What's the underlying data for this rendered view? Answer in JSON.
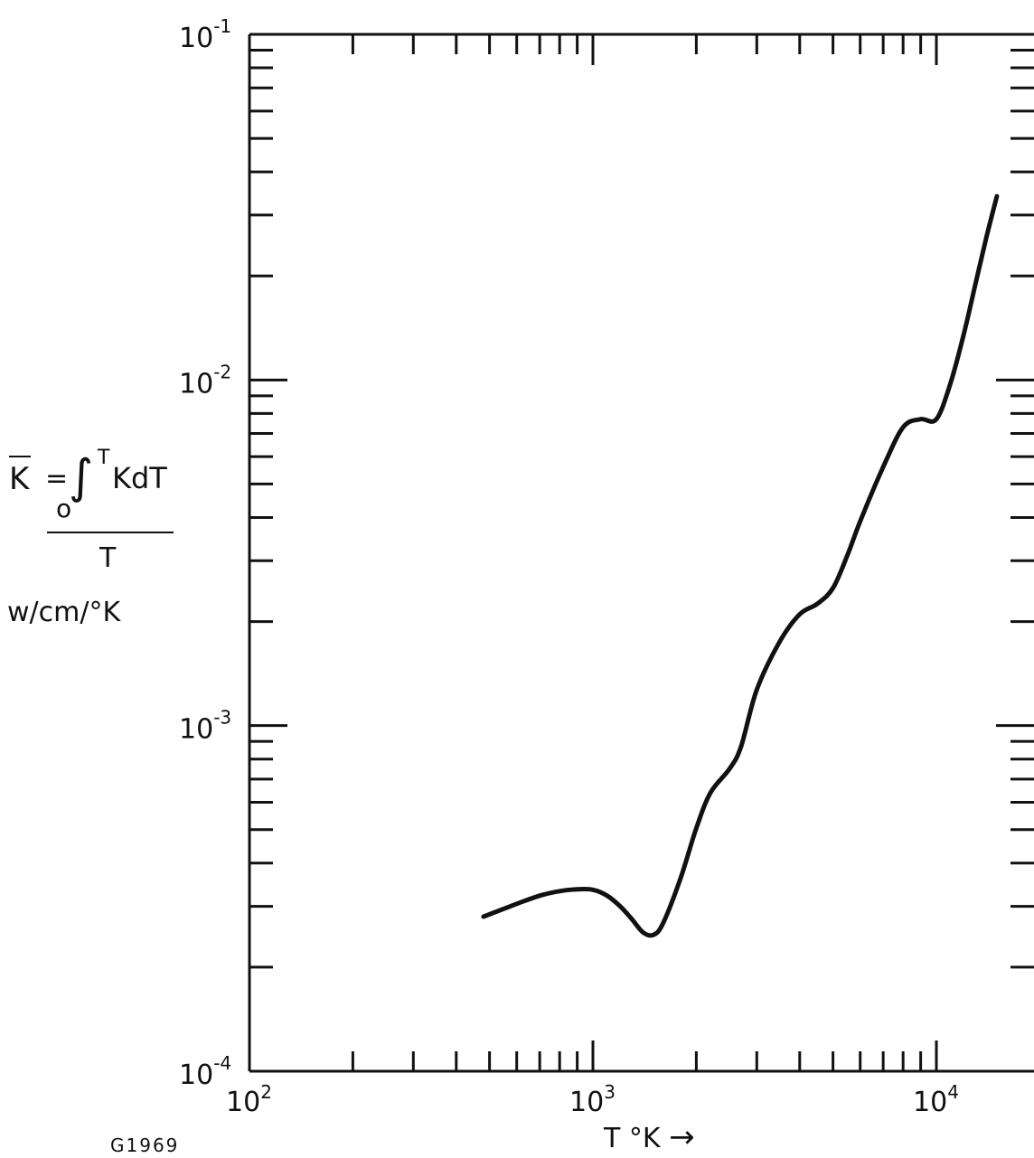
{
  "figure_id": "G1969",
  "ylabel": {
    "lhs": "K",
    "eq_sign": "=",
    "integral": "∫",
    "upper": "T",
    "lower": "o",
    "integrand": "KdT",
    "denominator": "T",
    "units": "w/cm/°K"
  },
  "xlabel": "T °K",
  "xlabel_arrow": "→",
  "chart_data": {
    "type": "line",
    "xscale": "log",
    "yscale": "log",
    "xlim": [
      100,
      15000
    ],
    "ylim": [
      0.0001,
      0.1
    ],
    "x_ticks": [
      {
        "base": "10",
        "exp": "2",
        "value": 100
      },
      {
        "base": "10",
        "exp": "3",
        "value": 1000
      },
      {
        "base": "10",
        "exp": "4",
        "value": 10000
      }
    ],
    "y_ticks": [
      {
        "base": "10",
        "exp": "-4",
        "value": 0.0001
      },
      {
        "base": "10",
        "exp": "-3",
        "value": 0.001
      },
      {
        "base": "10",
        "exp": "-2",
        "value": 0.01
      },
      {
        "base": "10",
        "exp": "-1",
        "value": 0.1
      }
    ],
    "grid": false,
    "series": [
      {
        "color": "#111111",
        "x": [
          480,
          600,
          700,
          800,
          900,
          1000,
          1100,
          1200,
          1300,
          1400,
          1500,
          1600,
          1800,
          2000,
          2200,
          2500,
          2700,
          3000,
          3500,
          4000,
          4500,
          5000,
          5500,
          6000,
          7000,
          8000,
          9000,
          10000,
          11000,
          12000,
          13000,
          14000,
          15000
        ],
        "y": [
          0.00028,
          0.000305,
          0.000322,
          0.000332,
          0.000336,
          0.000335,
          0.000322,
          0.0003,
          0.000275,
          0.000252,
          0.000248,
          0.000268,
          0.000362,
          0.000505,
          0.00064,
          0.00075,
          0.00087,
          0.00127,
          0.00175,
          0.0021,
          0.00225,
          0.0025,
          0.0031,
          0.0039,
          0.0056,
          0.0073,
          0.0077,
          0.0077,
          0.0098,
          0.0135,
          0.019,
          0.026,
          0.034
        ]
      }
    ]
  }
}
